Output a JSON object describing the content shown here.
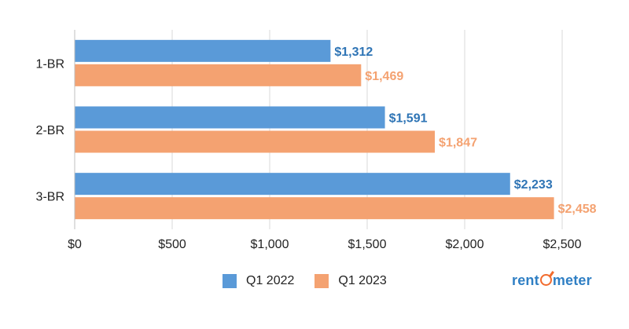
{
  "chart_data": {
    "type": "bar",
    "orientation": "horizontal",
    "categories": [
      "1-BR",
      "2-BR",
      "3-BR"
    ],
    "series": [
      {
        "name": "Q1 2022",
        "color": "#5a9ad8",
        "label_color": "#2e74b5",
        "values": [
          1312,
          1591,
          2233
        ],
        "labels": [
          "$1,312",
          "$1,591",
          "$2,233"
        ]
      },
      {
        "name": "Q1 2023",
        "color": "#f4a271",
        "label_color": "#f4a271",
        "values": [
          1469,
          1847,
          2458
        ],
        "labels": [
          "$1,469",
          "$1,847",
          "$2,458"
        ]
      }
    ],
    "xlim": [
      0,
      2500
    ],
    "x_ticks": [
      0,
      500,
      1000,
      1500,
      2000,
      2500
    ],
    "x_tick_labels": [
      "$0",
      "$500",
      "$1,000",
      "$1,500",
      "$2,000",
      "$2,500"
    ],
    "grid": true,
    "legend_position": "bottom"
  },
  "logo": {
    "text_before": "rent",
    "text_after": "meter",
    "accent_color": "#f26b2d"
  }
}
